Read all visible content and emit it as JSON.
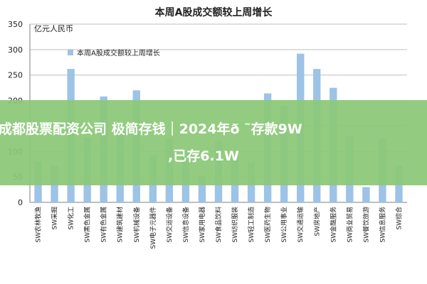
{
  "chart_data": {
    "type": "bar",
    "title": "本周A股成交额较上周增长",
    "ylabel": "亿元人民币",
    "xlabel": "",
    "ylim": [
      0,
      350
    ],
    "yticks": [
      0,
      50,
      100,
      150,
      200,
      250,
      300,
      350
    ],
    "grid": true,
    "legend_position": "top-left",
    "series": [
      {
        "name": "本周A股成交额较上周增长",
        "color": "#9dc3e6",
        "values": [
          80,
          72,
          262,
          128,
          208,
          148,
          220,
          93,
          125,
          102,
          52,
          120,
          90,
          78,
          214,
          190,
          292,
          262,
          225,
          130,
          30,
          125,
          72
        ]
      }
    ],
    "categories": [
      "SW农林牧渔",
      "SW采掘",
      "SW化工",
      "SW黑色金属",
      "SW有色金属",
      "SW建筑建材",
      "SW机械设备",
      "SW电子元器件",
      "SW交运设备",
      "SW信息设备",
      "SW家用电器",
      "SW食品饮料",
      "SW纺织服装",
      "SW轻工制造",
      "SW医药生物",
      "SW公用事业",
      "SW交通运输",
      "SW房地产",
      "SW金融服务",
      "SW商业贸易",
      "SW餐饮旅游",
      "SW信息服务",
      "SW综合"
    ]
  },
  "banner": {
    "line1": "成都股票配资公司 极简存钱｜2024年ð  ˜存款9W",
    "line2": ",已存6.1W"
  }
}
